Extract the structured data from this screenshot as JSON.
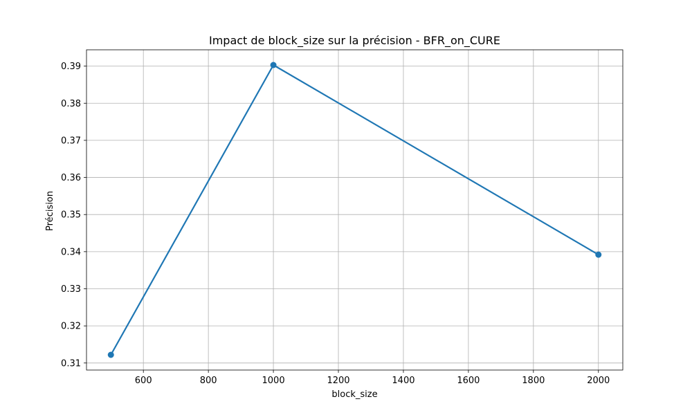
{
  "chart_data": {
    "type": "line",
    "title": "Impact de block_size sur la précision - BFR_on_CURE",
    "xlabel": "block_size",
    "ylabel": "Précision",
    "xlim": [
      425,
      2075
    ],
    "ylim": [
      0.3081,
      0.3944
    ],
    "x_ticks": [
      600,
      800,
      1000,
      1200,
      1400,
      1600,
      1800,
      2000
    ],
    "y_ticks": [
      0.31,
      0.32,
      0.33,
      0.34,
      0.35,
      0.36,
      0.37,
      0.38,
      0.39
    ],
    "x_tick_labels": [
      "600",
      "800",
      "1000",
      "1200",
      "1400",
      "1600",
      "1800",
      "2000"
    ],
    "y_tick_labels": [
      "0.31",
      "0.32",
      "0.33",
      "0.34",
      "0.35",
      "0.36",
      "0.37",
      "0.38",
      "0.39"
    ],
    "grid": true,
    "series": [
      {
        "x": [
          500,
          1000,
          2000
        ],
        "y": [
          0.3122,
          0.3903,
          0.3392
        ],
        "color": "#1f77b4",
        "marker": "circle"
      }
    ]
  }
}
